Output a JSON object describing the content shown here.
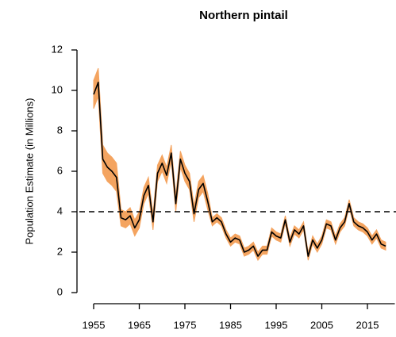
{
  "chart_data": {
    "type": "line",
    "title": "Northern pintail",
    "ylabel": "Population Estimate (in Millions)",
    "x": [
      1955,
      1956,
      1957,
      1958,
      1959,
      1960,
      1961,
      1962,
      1963,
      1964,
      1965,
      1966,
      1967,
      1968,
      1969,
      1970,
      1971,
      1972,
      1973,
      1974,
      1975,
      1976,
      1977,
      1978,
      1979,
      1980,
      1981,
      1982,
      1983,
      1984,
      1985,
      1986,
      1987,
      1988,
      1989,
      1990,
      1991,
      1992,
      1993,
      1994,
      1995,
      1996,
      1997,
      1998,
      1999,
      2000,
      2001,
      2002,
      2003,
      2004,
      2005,
      2006,
      2007,
      2008,
      2009,
      2010,
      2011,
      2012,
      2013,
      2014,
      2015,
      2016,
      2017,
      2018,
      2019
    ],
    "series": [
      {
        "color": "#000000",
        "values": [
          9.8,
          10.4,
          6.6,
          6.2,
          6.0,
          5.7,
          3.7,
          3.6,
          3.8,
          3.2,
          3.6,
          4.8,
          5.3,
          3.5,
          5.9,
          6.4,
          5.8,
          6.9,
          4.4,
          6.6,
          5.9,
          5.5,
          3.9,
          5.1,
          5.4,
          4.5,
          3.5,
          3.7,
          3.5,
          2.9,
          2.5,
          2.7,
          2.6,
          2.0,
          2.1,
          2.3,
          1.8,
          2.1,
          2.1,
          3.0,
          2.8,
          2.7,
          3.6,
          2.5,
          3.1,
          2.9,
          3.3,
          1.8,
          2.6,
          2.2,
          2.6,
          3.4,
          3.3,
          2.6,
          3.2,
          3.5,
          4.4,
          3.5,
          3.3,
          3.2,
          3.0,
          2.6,
          2.9,
          2.4,
          2.3
        ]
      }
    ],
    "band": {
      "color": "#f4a460",
      "lower": [
        9.1,
        9.7,
        5.9,
        5.5,
        5.3,
        5.0,
        3.3,
        3.2,
        3.4,
        2.8,
        3.2,
        4.4,
        4.9,
        3.1,
        5.5,
        6.0,
        5.4,
        6.5,
        4.0,
        6.2,
        5.5,
        5.1,
        3.5,
        4.7,
        5.0,
        4.1,
        3.3,
        3.5,
        3.3,
        2.7,
        2.3,
        2.5,
        2.4,
        1.8,
        1.9,
        2.1,
        1.6,
        1.9,
        1.9,
        2.8,
        2.6,
        2.5,
        3.4,
        2.3,
        2.9,
        2.7,
        3.1,
        1.6,
        2.4,
        2.0,
        2.4,
        3.2,
        3.1,
        2.4,
        3.0,
        3.3,
        4.2,
        3.3,
        3.1,
        3.0,
        2.8,
        2.4,
        2.7,
        2.2,
        2.1
      ],
      "upper": [
        10.5,
        11.1,
        7.3,
        6.9,
        6.7,
        6.4,
        4.1,
        4.0,
        4.2,
        3.6,
        4.0,
        5.2,
        5.7,
        3.9,
        6.3,
        6.8,
        6.2,
        7.3,
        4.8,
        7.0,
        6.3,
        5.9,
        4.3,
        5.5,
        5.8,
        4.9,
        3.7,
        3.9,
        3.7,
        3.1,
        2.7,
        2.9,
        2.8,
        2.2,
        2.3,
        2.5,
        2.0,
        2.3,
        2.3,
        3.2,
        3.0,
        2.9,
        3.8,
        2.7,
        3.3,
        3.1,
        3.5,
        2.0,
        2.8,
        2.4,
        2.8,
        3.6,
        3.5,
        2.8,
        3.4,
        3.7,
        4.6,
        3.7,
        3.5,
        3.4,
        3.2,
        2.8,
        3.1,
        2.6,
        2.5
      ]
    },
    "hline": {
      "value": 4,
      "style": "dashed"
    },
    "xlim": [
      1955,
      2021
    ],
    "xticks": [
      1955,
      1965,
      1975,
      1985,
      1995,
      2005,
      2015
    ],
    "ylim": [
      0,
      12
    ],
    "yticks": [
      0,
      2,
      4,
      6,
      8,
      10,
      12
    ],
    "grid": false
  }
}
